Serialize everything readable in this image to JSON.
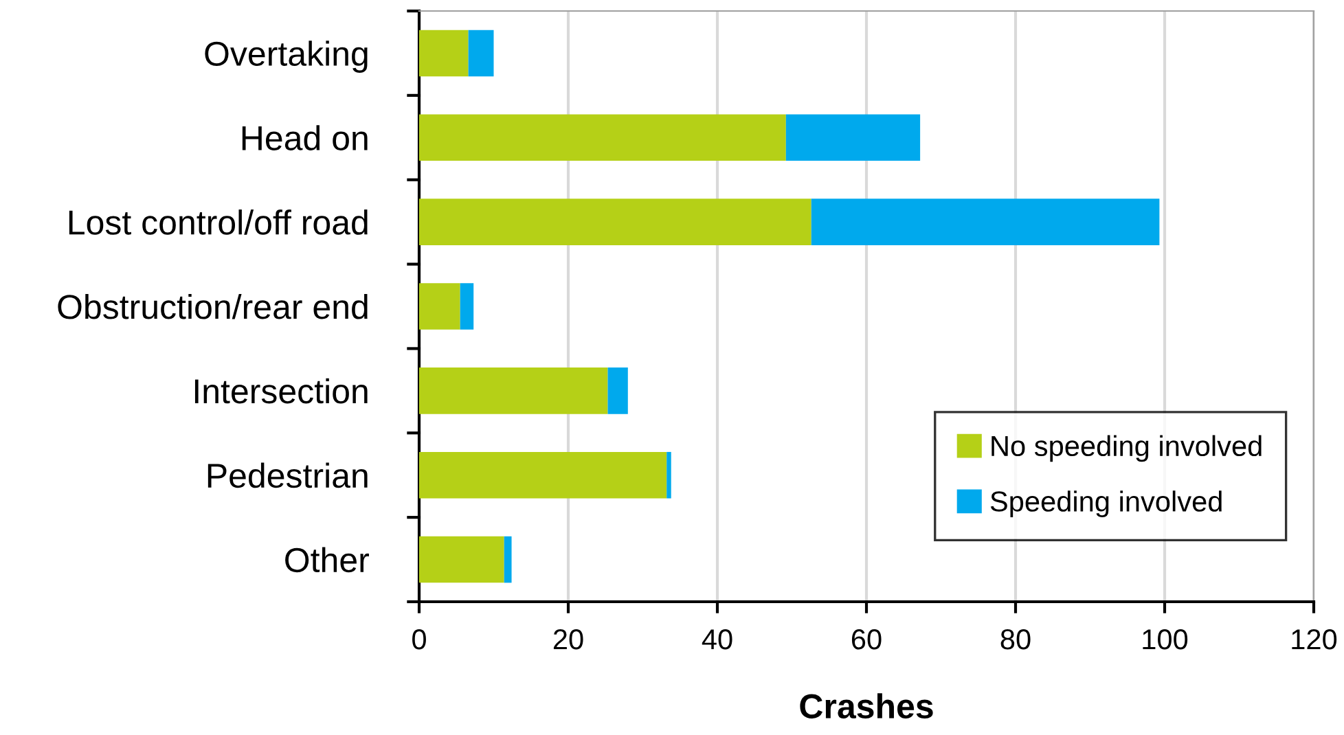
{
  "chart_data": {
    "type": "bar",
    "orientation": "horizontal",
    "stacked": true,
    "xlabel": "Crashes",
    "categories": [
      "Overtaking",
      "Head on",
      "Lost control/off road",
      "Obstruction/rear end",
      "Intersection",
      "Pedestrian",
      "Other"
    ],
    "series": [
      {
        "name": "No speeding involved",
        "color": "#b5d017",
        "values": [
          6.6,
          49.2,
          52.6,
          5.5,
          25.3,
          33.2,
          11.4
        ]
      },
      {
        "name": "Speeding involved",
        "color": "#00a9ed",
        "values": [
          3.4,
          18,
          46.7,
          1.8,
          2.7,
          0.6,
          1
        ]
      }
    ],
    "xlim": [
      0,
      120
    ],
    "xticks": [
      0,
      20,
      40,
      60,
      80,
      100,
      120
    ],
    "grid": "x",
    "legend": "bottom right"
  }
}
